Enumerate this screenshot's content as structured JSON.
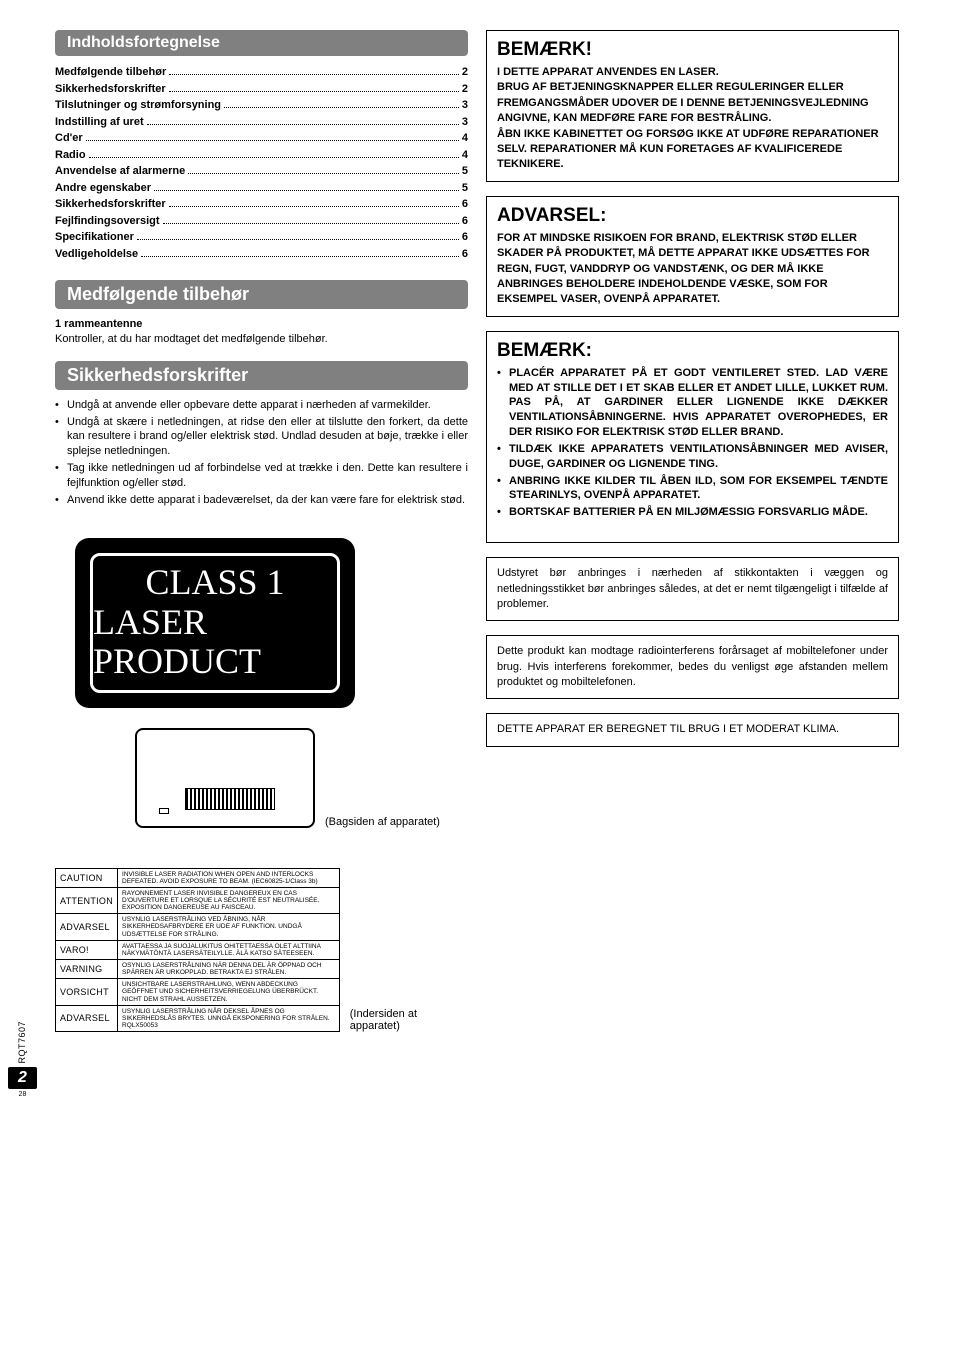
{
  "headers": {
    "toc_title": "Indholdsfortegnelse",
    "accessories_title": "Medfølgende tilbehør",
    "safety_title": "Sikkerhedsforskrifter"
  },
  "toc": [
    {
      "label": "Medfølgende tilbehør",
      "page": "2"
    },
    {
      "label": "Sikkerhedsforskrifter",
      "page": "2"
    },
    {
      "label": "Tilslutninger og strømforsyning",
      "page": "3"
    },
    {
      "label": "Indstilling af uret",
      "page": "3"
    },
    {
      "label": "Cd'er",
      "page": "4"
    },
    {
      "label": "Radio",
      "page": "4"
    },
    {
      "label": "Anvendelse af alarmerne",
      "page": "5"
    },
    {
      "label": "Andre egenskaber",
      "page": "5"
    },
    {
      "label": "Sikkerhedsforskrifter",
      "page": "6"
    },
    {
      "label": "Fejlfindingsoversigt",
      "page": "6"
    },
    {
      "label": "Specifikationer",
      "page": "6"
    },
    {
      "label": "Vedligeholdelse",
      "page": "6"
    }
  ],
  "accessories": {
    "item_title": "1 rammeantenne",
    "check_text": "Kontroller, at du har modtaget det medfølgende tilbehør."
  },
  "safety_bullets": [
    "Undgå at anvende eller opbevare dette apparat i nærheden af varmekilder.",
    "Undgå at skære i netledningen, at ridse den eller at tilslutte den forkert, da dette kan resultere i brand og/eller elektrisk stød. Undlad desuden at bøje, trække i eller splejse netledningen.",
    "Tag ikke netledningen ud af forbindelse ved at trække i den. Dette kan resultere i fejlfunktion og/eller stød.",
    "Anvend ikke dette apparat i badeværelset, da der kan være fare for elektrisk stød."
  ],
  "laser_label": {
    "line1": "CLASS 1",
    "line2": "LASER PRODUCT"
  },
  "back_caption": "(Bagsiden af apparatet)",
  "caution_table": {
    "rows": [
      {
        "head": "CAUTION",
        "body": "INVISIBLE LASER RADIATION WHEN OPEN AND INTERLOCKS DEFEATED. AVOID EXPOSURE TO BEAM.                                   (IEC60825-1/Class 3b)"
      },
      {
        "head": "ATTENTION",
        "body": "RAYONNEMENT LASER INVISIBLE DANGEREUX EN CAS D'OUVERTURE ET LORSQUE LA SÉCURITÉ EST NEUTRALISÉE. EXPOSITION DANGEREUSE AU FAISCEAU."
      },
      {
        "head": "ADVARSEL",
        "body": "USYNLIG LASERSTRÅLING VED ÅBNING, NÅR SIKKERHEDSAFBRYDERE ER UDE AF FUNKTION. UNDGÅ UDSÆTTELSE FOR STRÅLING."
      },
      {
        "head": "VARO!",
        "body": "AVATTAESSA JA SUOJALUKITUS OHITETTAESSA OLET ALTTIINA NÄKYMÄTÖNTÄ LASERSÄTEILYLLE. ÄLÄ KATSO SÄTEESEEN."
      },
      {
        "head": "VARNING",
        "body": "OSYNLIG LASERSTRÅLNING NÄR DENNA DEL ÄR ÖPPNAD OCH SPÄRREN ÄR URKOPPLAD. BETRAKTA EJ STRÅLEN."
      },
      {
        "head": "VORSICHT",
        "body": "UNSICHTBARE LASERSTRAHLUNG, WENN ABDECKUNG GEÖFFNET UND SICHERHEITSVERRIEGELUNG ÜBERBRÜCKT. NICHT DEM STRAHL AUSSETZEN."
      },
      {
        "head": "ADVARSEL",
        "body": "USYNLIG LASERSTRÅLING NÅR DEKSEL ÅPNES OG SIKKERHEDSLÅS BRYTES. UNNGÅ EKSPONERING FOR STRÅLEN.                         RQLX50053"
      }
    ],
    "caption": "(Indersiden at apparatet)"
  },
  "right_boxes": {
    "bemærk1_title": "BEMÆRK!",
    "bemærk1_body": "I DETTE APPARAT ANVENDES EN LASER.\nBRUG AF BETJENINGSKNAPPER ELLER REGULERINGER ELLER FREMGANGSMÅDER UDOVER DE I DENNE BETJENINGSVEJLEDNING ANGIVNE, KAN MEDFØRE FARE FOR BESTRÅLING.\nÅBN IKKE KABINETTET OG FORSØG IKKE AT UDFØRE REPARATIONER SELV. REPARATIONER MÅ KUN FORETAGES AF KVALIFICEREDE TEKNIKERE.",
    "advarsel_title": "ADVARSEL:",
    "advarsel_body": "FOR AT MINDSKE RISIKOEN FOR BRAND, ELEKTRISK STØD ELLER SKADER PÅ PRODUKTET, MÅ DETTE APPARAT IKKE UDSÆTTES FOR REGN, FUGT, VANDDRYP OG VANDSTÆNK, OG DER MÅ IKKE ANBRINGES BEHOLDERE INDEHOLDENDE VÆSKE, SOM FOR EKSEMPEL VASER, OVENPÅ APPARATET.",
    "bemærk2_title": "BEMÆRK:",
    "bemærk2_bullets": [
      "PLACÉR APPARATET PÅ ET GODT VENTILERET STED. LAD VÆRE MED AT STILLE DET I ET SKAB ELLER ET ANDET LILLE, LUKKET RUM. PAS PÅ, AT GARDINER ELLER LIGNENDE IKKE DÆKKER VENTILATIONSÅBNINGERNE. HVIS APPARATET OVEROPHEDES, ER DER RISIKO FOR ELEKTRISK STØD ELLER BRAND.",
      "TILDÆK IKKE APPARATETS VENTILATIONSÅBNINGER MED AVISER, DUGE, GARDINER OG LIGNENDE TING.",
      "ANBRING IKKE KILDER TIL ÅBEN ILD, SOM FOR EKSEMPEL TÆNDTE STEARINLYS, OVENPÅ APPARATET.",
      "BORTSKAF BATTERIER PÅ EN MILJØMÆSSIG FORSVARLIG MÅDE."
    ],
    "placement_note": "Udstyret bør anbringes i nærheden af stikkontakten i væggen og netledningsstikket bør anbringes således, at det er nemt tilgængeligt i tilfælde af problemer.",
    "interference_note": "Dette produkt kan modtage radiointerferens forårsaget af mobiltelefoner under brug. Hvis interferens forekommer, bedes du venligst øge afstanden mellem produktet og mobiltelefonen.",
    "climate_note": "DETTE APPARAT ER BEREGNET TIL BRUG I ET MODERAT KLIMA."
  },
  "footer": {
    "code": "RQT7607",
    "page_num": "2",
    "sub_num": "28"
  }
}
